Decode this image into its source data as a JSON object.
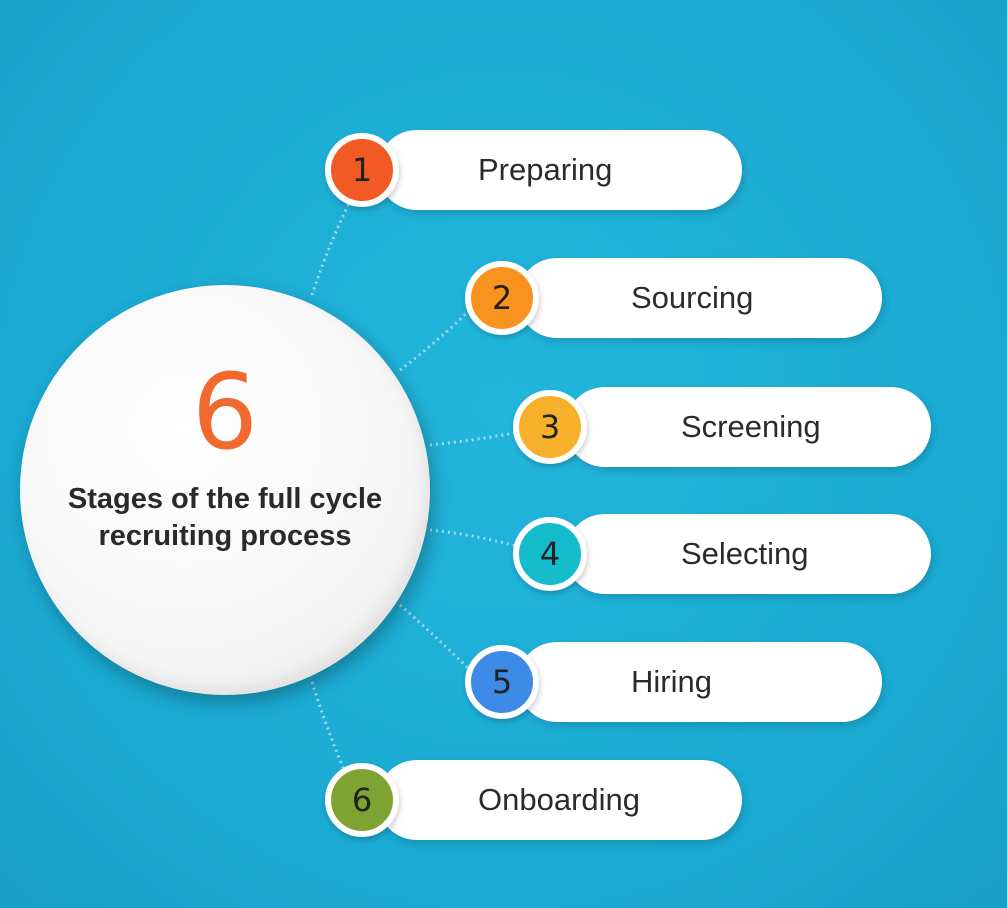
{
  "hub": {
    "number": "6",
    "caption_line1": "Stages of the full cycle",
    "caption_line2": "recruiting process"
  },
  "stages": [
    {
      "number": "1",
      "label": "Preparing",
      "color": "#f15a24"
    },
    {
      "number": "2",
      "label": "Sourcing",
      "color": "#f7931e"
    },
    {
      "number": "3",
      "label": "Screening",
      "color": "#f7b02a"
    },
    {
      "number": "4",
      "label": "Selecting",
      "color": "#15bccc"
    },
    {
      "number": "5",
      "label": "Hiring",
      "color": "#3d8be6"
    },
    {
      "number": "6",
      "label": "Onboarding",
      "color": "#7ea332"
    }
  ],
  "colors": {
    "background": "#1fb0d6",
    "hub_number": "#f06a2e",
    "connector": "#8fd3e8"
  }
}
